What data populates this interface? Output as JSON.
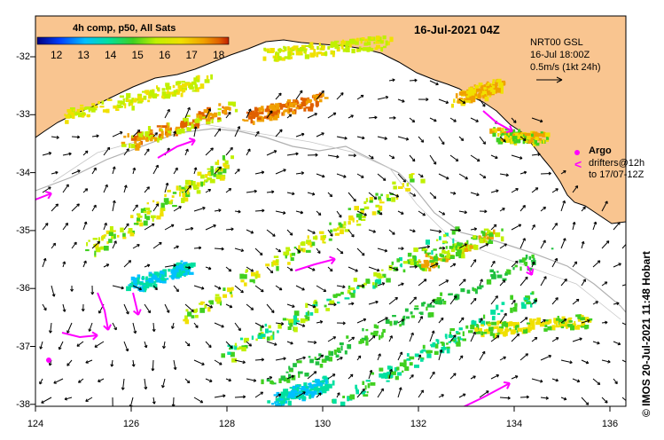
{
  "title": "16-Jul-2021 04Z",
  "legend": {
    "title": "4h comp, p50, All Sats",
    "ticks": [
      "12",
      "13",
      "14",
      "15",
      "16",
      "17",
      "18"
    ],
    "stops": [
      "#000080",
      "#0040ff",
      "#00c0ff",
      "#00e0a0",
      "#40d020",
      "#c0f000",
      "#f0e000",
      "#f0a000",
      "#e06000",
      "#c02000"
    ]
  },
  "currents": {
    "model": "NRT00 GSL",
    "time": "16-Jul 18:00Z",
    "scale": "0.5m/s (1kt 24h)"
  },
  "argo": {
    "label": "Argo",
    "drifters_line1": "drifters@12h",
    "drifters_line2": "to 17/07-12Z",
    "marker": "<"
  },
  "x_ticks": [
    "124",
    "126",
    "128",
    "130",
    "132",
    "134",
    "136"
  ],
  "y_ticks": [
    "-32",
    "-33",
    "-34",
    "-35",
    "-36",
    "-37",
    "-38"
  ],
  "credit": "© IMOS 20-Jul-2021 11:48 Hobart",
  "colors": {
    "land": "#f9c590",
    "ocean": "#ffffff",
    "drifter": "#ff00ff",
    "shelf": "#b0b0b0"
  }
}
